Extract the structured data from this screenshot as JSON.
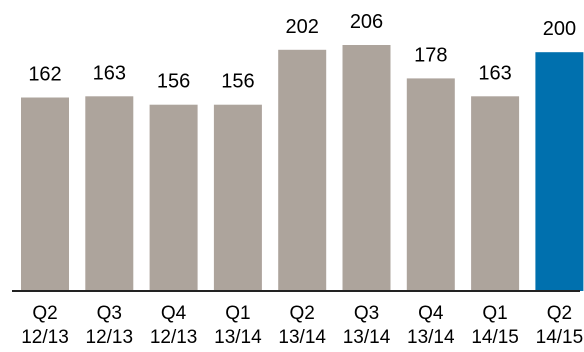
{
  "chart_data": {
    "type": "bar",
    "categories": [
      [
        "Q2",
        "12/13"
      ],
      [
        "Q3",
        "12/13"
      ],
      [
        "Q4",
        "12/13"
      ],
      [
        "Q1",
        "13/14"
      ],
      [
        "Q2",
        "13/14"
      ],
      [
        "Q3",
        "13/14"
      ],
      [
        "Q4",
        "13/14"
      ],
      [
        "Q1",
        "14/15"
      ],
      [
        "Q2",
        "14/15"
      ]
    ],
    "values": [
      162,
      163,
      156,
      156,
      202,
      206,
      178,
      163,
      200
    ],
    "data_labels": [
      "162",
      "163",
      "156",
      "156",
      "202",
      "206",
      "178",
      "163",
      "200"
    ],
    "bar_colors": [
      "#ada49c",
      "#ada49c",
      "#ada49c",
      "#ada49c",
      "#ada49c",
      "#ada49c",
      "#ada49c",
      "#ada49c",
      "#0070ae"
    ],
    "baseline_color": "#222222",
    "title": "",
    "xlabel": "",
    "ylabel": "",
    "ylim": [
      0,
      206
    ],
    "grid": false,
    "legend": "none"
  }
}
